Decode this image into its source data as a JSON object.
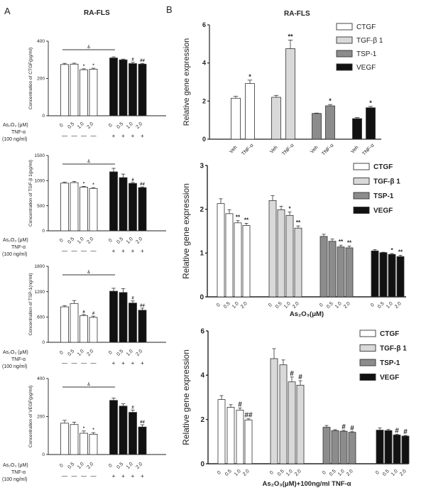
{
  "figure": {
    "label_a": "A",
    "label_b": "B",
    "title_a": "RA-FLS",
    "title_b": "RA-FLS"
  },
  "row_labels": {
    "drug": "As₂O₃ (μM)",
    "tnf": "TNF-α",
    "tnf_dose": "(100 ng/ml)",
    "minus": "—",
    "plus": "+"
  },
  "colors": {
    "CTGF": "#ffffff",
    "TGF-β 1": "#d9d9d9",
    "TSP-1": "#8c8c8c",
    "VEGF": "#111111",
    "control": "#ffffff",
    "tnf": "#111111"
  },
  "chart_data": [
    {
      "id": "a1",
      "type": "bar",
      "ylabel": "Concentration of CTGF(pg/ml)",
      "ylim": [
        0,
        400
      ],
      "yticks": [
        0,
        200,
        400
      ],
      "categories": [
        "0",
        "0.5",
        "1.0",
        "2.0",
        "0",
        "0.5",
        "1.0",
        "2.0"
      ],
      "tnf": [
        "—",
        "—",
        "—",
        "—",
        "+",
        "+",
        "+",
        "+"
      ],
      "values": [
        275,
        277,
        247,
        250,
        310,
        300,
        280,
        277
      ],
      "errors": [
        6,
        5,
        5,
        5,
        6,
        4,
        7,
        4
      ],
      "sig": [
        "",
        "",
        "*",
        "*",
        "",
        "",
        "#",
        "##"
      ],
      "bracket": "&"
    },
    {
      "id": "a2",
      "type": "bar",
      "ylabel": "Concentration of TGF-β 1(pg/ml)",
      "ylim": [
        0,
        1500
      ],
      "yticks": [
        0,
        500,
        1000,
        1500
      ],
      "categories": [
        "0",
        "0.5",
        "1.0",
        "2.0",
        "0",
        "0.5",
        "1.0",
        "2.0"
      ],
      "tnf": [
        "—",
        "—",
        "—",
        "—",
        "+",
        "+",
        "+",
        "+"
      ],
      "values": [
        950,
        960,
        870,
        845,
        1175,
        1060,
        945,
        860
      ],
      "errors": [
        20,
        25,
        15,
        15,
        70,
        70,
        20,
        15
      ],
      "sig": [
        "",
        "",
        "*",
        "*",
        "",
        "",
        "#",
        "##"
      ],
      "bracket": "&"
    },
    {
      "id": "a3",
      "type": "bar",
      "ylabel": "Concentration of TSP-1(ng/ml)",
      "ylim": [
        0,
        1800
      ],
      "yticks": [
        0,
        600,
        1200,
        1800
      ],
      "categories": [
        "0",
        "0.5",
        "1.0",
        "2.0",
        "0",
        "0.5",
        "1.0",
        "2.0"
      ],
      "tnf": [
        "—",
        "—",
        "—",
        "—",
        "+",
        "+",
        "+",
        "+"
      ],
      "values": [
        840,
        920,
        630,
        590,
        1210,
        1180,
        930,
        760
      ],
      "errors": [
        30,
        70,
        30,
        30,
        70,
        90,
        50,
        50
      ],
      "sig": [
        "",
        "",
        "#",
        "#",
        "",
        "",
        "#",
        "##"
      ],
      "bracket": "&"
    },
    {
      "id": "a4",
      "type": "bar",
      "ylabel": "Concentration of VEGF(pg/ml)",
      "ylim": [
        0,
        400
      ],
      "yticks": [
        0,
        200,
        400
      ],
      "categories": [
        "0",
        "0.5",
        "1.0",
        "2.0",
        "0",
        "0.5",
        "1.0",
        "2.0"
      ],
      "tnf": [
        "—",
        "—",
        "—",
        "—",
        "+",
        "+",
        "+",
        "+"
      ],
      "values": [
        165,
        158,
        112,
        107,
        285,
        255,
        222,
        145
      ],
      "errors": [
        15,
        12,
        12,
        8,
        12,
        12,
        12,
        12
      ],
      "sig": [
        "",
        "",
        "*",
        "*",
        "",
        "",
        "#",
        "##"
      ],
      "bracket": "&"
    },
    {
      "id": "b1",
      "type": "bar",
      "ylabel": "Relative gene expression",
      "xlabel": "",
      "ylim": [
        0,
        6
      ],
      "yticks": [
        0,
        2,
        4,
        6
      ],
      "legend": [
        "CTGF",
        "TGF-β 1",
        "TSP-1",
        "VEGF"
      ],
      "legend_position": "top-right",
      "categories": [
        "Veh",
        "TNF-α"
      ],
      "series": [
        {
          "name": "CTGF",
          "values": [
            2.15,
            2.92
          ],
          "errors": [
            0.1,
            0.18
          ],
          "sig": [
            "",
            "*"
          ]
        },
        {
          "name": "TGF-β 1",
          "values": [
            2.2,
            4.75
          ],
          "errors": [
            0.1,
            0.45
          ],
          "sig": [
            "",
            "**"
          ]
        },
        {
          "name": "TSP-1",
          "values": [
            1.35,
            1.75
          ],
          "errors": [
            0.02,
            0.07
          ],
          "sig": [
            "",
            "*"
          ]
        },
        {
          "name": "VEGF",
          "values": [
            1.08,
            1.65
          ],
          "errors": [
            0.06,
            0.07
          ],
          "sig": [
            "",
            "*"
          ]
        }
      ]
    },
    {
      "id": "b2",
      "type": "bar",
      "ylabel": "Relative gene expression",
      "xlabel": "As₂O₃(μM)",
      "ylim": [
        0,
        3
      ],
      "yticks": [
        0,
        1,
        2,
        3
      ],
      "legend": [
        "CTGF",
        "TGF-β 1",
        "TSP-1",
        "VEGF"
      ],
      "legend_position": "top-right",
      "categories": [
        "0",
        "0.5",
        "1.0",
        "2.0"
      ],
      "series": [
        {
          "name": "CTGF",
          "values": [
            2.13,
            1.9,
            1.69,
            1.63
          ],
          "errors": [
            0.11,
            0.09,
            0.05,
            0.05
          ],
          "sig": [
            "",
            "",
            "**",
            "**"
          ]
        },
        {
          "name": "TGF-β 1",
          "values": [
            2.2,
            1.99,
            1.86,
            1.57
          ],
          "errors": [
            0.11,
            0.08,
            0.08,
            0.05
          ],
          "sig": [
            "",
            "",
            "*",
            "**"
          ]
        },
        {
          "name": "TSP-1",
          "values": [
            1.38,
            1.27,
            1.14,
            1.12
          ],
          "errors": [
            0.05,
            0.05,
            0.04,
            0.04
          ],
          "sig": [
            "",
            "",
            "**",
            "**"
          ]
        },
        {
          "name": "VEGF",
          "values": [
            1.05,
            1.01,
            0.97,
            0.92
          ],
          "errors": [
            0.03,
            0.01,
            0.02,
            0.03
          ],
          "sig": [
            "",
            "",
            "*",
            "**"
          ]
        }
      ]
    },
    {
      "id": "b3",
      "type": "bar",
      "ylabel": "Relative gene expression",
      "xlabel": "As₂O₃(μM)+100ng/ml TNF-α",
      "ylim": [
        0,
        6
      ],
      "yticks": [
        0,
        2,
        4,
        6
      ],
      "legend": [
        "CTGF",
        "TGF-β 1",
        "TSP-1",
        "VEGF"
      ],
      "legend_position": "top-right",
      "categories": [
        "0",
        "0.5",
        "1.0",
        "2.0"
      ],
      "series": [
        {
          "name": "CTGF",
          "values": [
            2.9,
            2.55,
            2.42,
            1.98
          ],
          "errors": [
            0.18,
            0.12,
            0.1,
            0.05
          ],
          "sig": [
            "",
            "",
            "#",
            "##"
          ]
        },
        {
          "name": "TGF-β 1",
          "values": [
            4.75,
            4.47,
            3.7,
            3.55
          ],
          "errors": [
            0.45,
            0.22,
            0.22,
            0.2
          ],
          "sig": [
            "",
            "",
            "#",
            "#"
          ]
        },
        {
          "name": "TSP-1",
          "values": [
            1.65,
            1.5,
            1.47,
            1.42
          ],
          "errors": [
            0.08,
            0.04,
            0.04,
            0.03
          ],
          "sig": [
            "",
            "",
            "#",
            "#"
          ]
        },
        {
          "name": "VEGF",
          "values": [
            1.52,
            1.5,
            1.3,
            1.25
          ],
          "errors": [
            0.1,
            0.05,
            0.03,
            0.03
          ],
          "sig": [
            "",
            "",
            "#",
            "#"
          ]
        }
      ]
    }
  ]
}
